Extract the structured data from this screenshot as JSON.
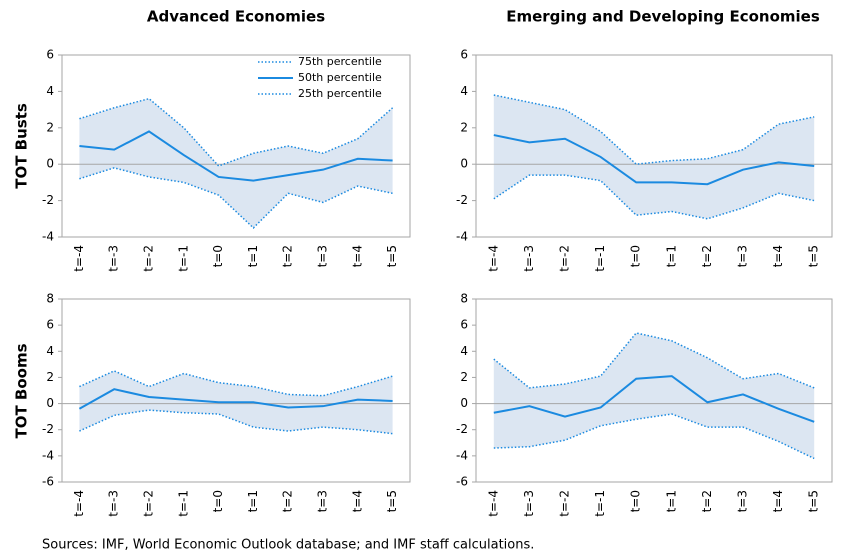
{
  "column_titles": [
    "Advanced Economies",
    "Emerging and Developing Economies"
  ],
  "row_titles": [
    "TOT Busts",
    "TOT Booms"
  ],
  "source": "Sources: IMF, World Economic Outlook database; and IMF staff calculations.",
  "chart_data": [
    {
      "type": "line",
      "legend": "upper right",
      "band": true,
      "band_color": "#dce6f2",
      "zero_line": true,
      "categories": [
        "t=-4",
        "t=-3",
        "t=-2",
        "t=-1",
        "t=0",
        "t=1",
        "t=2",
        "t=3",
        "t=4",
        "t=5"
      ],
      "ylim": [
        -4,
        6
      ],
      "yticks": [
        -4,
        -2,
        0,
        2,
        4,
        6
      ],
      "series": [
        {
          "name": "75th percentile",
          "color": "#1b8ae0",
          "style": "dotted",
          "values": [
            2.5,
            3.1,
            3.6,
            2.0,
            -0.1,
            0.6,
            1.0,
            0.6,
            1.4,
            3.1
          ]
        },
        {
          "name": "50th percentile",
          "color": "#1b8ae0",
          "style": "solid",
          "values": [
            1.0,
            0.8,
            1.8,
            0.5,
            -0.7,
            -0.9,
            -0.6,
            -0.3,
            0.3,
            0.2
          ]
        },
        {
          "name": "25th percentile",
          "color": "#1b8ae0",
          "style": "dotted",
          "values": [
            -0.8,
            -0.2,
            -0.7,
            -1.0,
            -1.7,
            -3.5,
            -1.6,
            -2.1,
            -1.2,
            -1.6
          ]
        }
      ]
    },
    {
      "type": "line",
      "band": true,
      "band_color": "#dce6f2",
      "zero_line": true,
      "categories": [
        "t=-4",
        "t=-3",
        "t=-2",
        "t=-1",
        "t=0",
        "t=1",
        "t=2",
        "t=3",
        "t=4",
        "t=5"
      ],
      "ylim": [
        -4,
        6
      ],
      "yticks": [
        -4,
        -2,
        0,
        2,
        4,
        6
      ],
      "series": [
        {
          "color": "#1b8ae0",
          "style": "dotted",
          "values": [
            3.8,
            3.4,
            3.0,
            1.8,
            0.0,
            0.2,
            0.3,
            0.8,
            2.2,
            2.6
          ]
        },
        {
          "color": "#1b8ae0",
          "style": "solid",
          "values": [
            1.6,
            1.2,
            1.4,
            0.4,
            -1.0,
            -1.0,
            -1.1,
            -0.3,
            0.1,
            -0.1
          ]
        },
        {
          "color": "#1b8ae0",
          "style": "dotted",
          "values": [
            -1.9,
            -0.6,
            -0.6,
            -0.9,
            -2.8,
            -2.6,
            -3.0,
            -2.4,
            -1.6,
            -2.0
          ]
        }
      ]
    },
    {
      "type": "line",
      "band": true,
      "band_color": "#dce6f2",
      "zero_line": true,
      "categories": [
        "t=-4",
        "t=-3",
        "t=-2",
        "t=-1",
        "t=0",
        "t=1",
        "t=2",
        "t=3",
        "t=4",
        "t=5"
      ],
      "ylim": [
        -6,
        8
      ],
      "yticks": [
        -6,
        -4,
        -2,
        0,
        2,
        4,
        6,
        8
      ],
      "series": [
        {
          "color": "#1b8ae0",
          "style": "dotted",
          "values": [
            1.3,
            2.5,
            1.3,
            2.3,
            1.6,
            1.3,
            0.7,
            0.6,
            1.3,
            2.1
          ]
        },
        {
          "color": "#1b8ae0",
          "style": "solid",
          "values": [
            -0.4,
            1.1,
            0.5,
            0.3,
            0.1,
            0.1,
            -0.3,
            -0.2,
            0.3,
            0.2
          ]
        },
        {
          "color": "#1b8ae0",
          "style": "dotted",
          "values": [
            -2.1,
            -0.9,
            -0.5,
            -0.7,
            -0.8,
            -1.8,
            -2.1,
            -1.8,
            -2.0,
            -2.3
          ]
        }
      ]
    },
    {
      "type": "line",
      "band": true,
      "band_color": "#dce6f2",
      "zero_line": true,
      "categories": [
        "t=-4",
        "t=-3",
        "t=-2",
        "t=-1",
        "t=0",
        "t=1",
        "t=2",
        "t=3",
        "t=4",
        "t=5"
      ],
      "ylim": [
        -6,
        8
      ],
      "yticks": [
        -6,
        -4,
        -2,
        0,
        2,
        4,
        6,
        8
      ],
      "series": [
        {
          "color": "#1b8ae0",
          "style": "dotted",
          "values": [
            3.4,
            1.2,
            1.5,
            2.1,
            5.4,
            4.8,
            3.5,
            1.9,
            2.3,
            1.2
          ]
        },
        {
          "color": "#1b8ae0",
          "style": "solid",
          "values": [
            -0.7,
            -0.2,
            -1.0,
            -0.3,
            1.9,
            2.1,
            0.1,
            0.7,
            -0.4,
            -1.4
          ]
        },
        {
          "color": "#1b8ae0",
          "style": "dotted",
          "values": [
            -3.4,
            -3.3,
            -2.8,
            -1.7,
            -1.2,
            -0.8,
            -1.8,
            -1.8,
            -2.9,
            -4.2
          ]
        }
      ]
    }
  ]
}
